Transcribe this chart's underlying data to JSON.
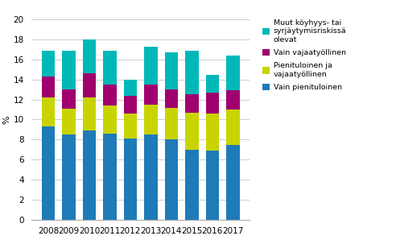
{
  "years": [
    2008,
    2009,
    2010,
    2011,
    2012,
    2013,
    2014,
    2015,
    2016,
    2017
  ],
  "series": {
    "Vain pienituloinen": [
      9.3,
      8.5,
      8.9,
      8.6,
      8.1,
      8.5,
      8.0,
      7.0,
      6.9,
      7.5
    ],
    "Pienituloinen ja vajaatyöllinen": [
      2.9,
      2.6,
      3.3,
      2.8,
      2.5,
      3.0,
      3.2,
      3.7,
      3.7,
      3.5
    ],
    "Vain vajaatyöllinen": [
      2.1,
      1.9,
      2.4,
      2.1,
      1.8,
      2.0,
      1.8,
      1.8,
      2.1,
      1.9
    ],
    "Muut köyhyys- tai syrjäytymisriskissä olevat": [
      2.6,
      3.9,
      3.4,
      3.4,
      1.6,
      3.8,
      3.7,
      4.4,
      1.8,
      3.5
    ]
  },
  "colors": {
    "Vain pienituloinen": "#1e7bb8",
    "Pienituloinen ja vajaatyöllinen": "#c8d400",
    "Vain vajaatyöllinen": "#a0006e",
    "Muut köyhyys- tai syrjäytymisriskissä olevat": "#00b8b8"
  },
  "legend_labels": {
    "Muut köyhyys- tai syrjäytymisriskissä olevat": "Muut köyhyys- tai\nsyrjäytymisriskissä\nolevat",
    "Vain vajaatyöllinen": "Vain vajaatyöllinen",
    "Pienituloinen ja vajaatyöllinen": "Pienituloinen ja\nvajaatyöllinen",
    "Vain pienituloinen": "Vain pienituloinen"
  },
  "ylabel": "%",
  "ylim": [
    0,
    20
  ],
  "yticks": [
    0,
    2,
    4,
    6,
    8,
    10,
    12,
    14,
    16,
    18,
    20
  ],
  "background_color": "#ffffff",
  "grid_color": "#cccccc",
  "figsize": [
    4.92,
    3.03
  ],
  "dpi": 100
}
